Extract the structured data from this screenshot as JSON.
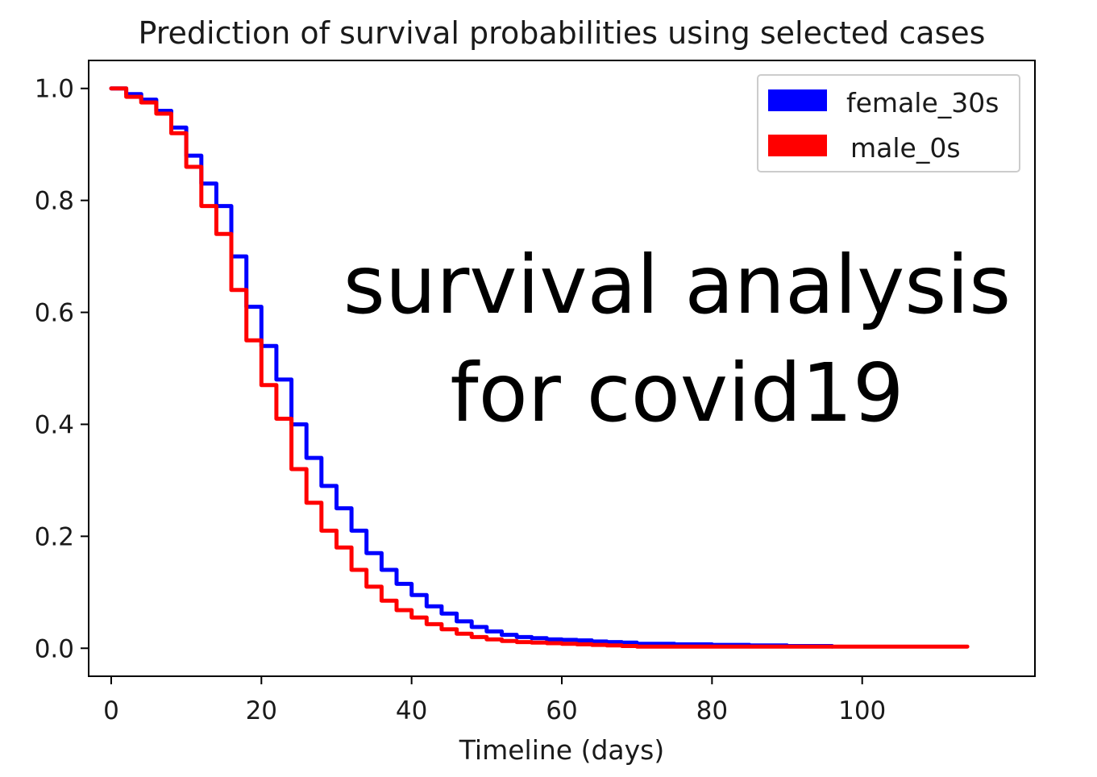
{
  "chart_data": {
    "type": "line",
    "title": "Prediction of survival probabilities using selected cases",
    "xlabel": "Timeline (days)",
    "ylabel": "",
    "xlim": [
      -3,
      123
    ],
    "ylim": [
      -0.05,
      1.05
    ],
    "xticks": [
      0,
      20,
      40,
      60,
      80,
      100
    ],
    "yticks": [
      0.0,
      0.2,
      0.4,
      0.6,
      0.8,
      1.0
    ],
    "xtick_labels": [
      "0",
      "20",
      "40",
      "60",
      "80",
      "100"
    ],
    "ytick_labels": [
      "0.0",
      "0.2",
      "0.4",
      "0.6",
      "0.8",
      "1.0"
    ],
    "grid": false,
    "legend_position": "top-right",
    "step": true,
    "series": [
      {
        "name": "female_30s",
        "color": "#0000ff",
        "x": [
          0,
          2,
          4,
          6,
          8,
          10,
          12,
          14,
          16,
          18,
          20,
          22,
          24,
          26,
          28,
          30,
          32,
          34,
          36,
          38,
          40,
          42,
          44,
          46,
          48,
          50,
          52,
          54,
          56,
          58,
          60,
          62,
          64,
          66,
          68,
          70,
          75,
          80,
          85,
          90,
          96
        ],
        "values": [
          1.0,
          0.99,
          0.98,
          0.96,
          0.93,
          0.88,
          0.83,
          0.79,
          0.7,
          0.61,
          0.54,
          0.48,
          0.4,
          0.34,
          0.29,
          0.25,
          0.21,
          0.17,
          0.14,
          0.115,
          0.095,
          0.075,
          0.062,
          0.048,
          0.038,
          0.03,
          0.024,
          0.02,
          0.018,
          0.016,
          0.015,
          0.014,
          0.012,
          0.011,
          0.01,
          0.008,
          0.007,
          0.006,
          0.005,
          0.004,
          0.003
        ]
      },
      {
        "name": "male_0s",
        "color": "#ff0000",
        "x": [
          0,
          2,
          4,
          6,
          8,
          10,
          12,
          14,
          16,
          18,
          20,
          22,
          24,
          26,
          28,
          30,
          32,
          34,
          36,
          38,
          40,
          42,
          44,
          46,
          48,
          50,
          52,
          54,
          56,
          58,
          60,
          62,
          64,
          66,
          68,
          70,
          80,
          90,
          100,
          110,
          114
        ],
        "values": [
          1.0,
          0.985,
          0.975,
          0.955,
          0.92,
          0.86,
          0.79,
          0.74,
          0.64,
          0.55,
          0.47,
          0.41,
          0.32,
          0.26,
          0.21,
          0.18,
          0.14,
          0.11,
          0.085,
          0.068,
          0.055,
          0.043,
          0.034,
          0.026,
          0.02,
          0.016,
          0.013,
          0.011,
          0.01,
          0.009,
          0.008,
          0.007,
          0.006,
          0.005,
          0.004,
          0.003,
          0.003,
          0.003,
          0.003,
          0.003,
          0.003
        ]
      }
    ],
    "annotations": [
      "survival analysis",
      "for covid19"
    ]
  }
}
